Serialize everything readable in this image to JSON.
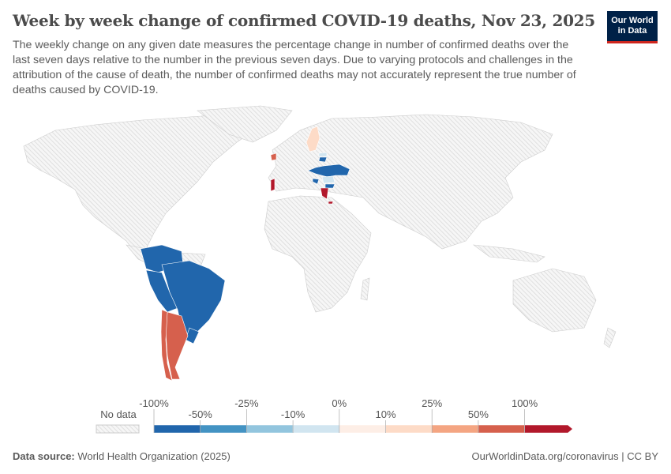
{
  "header": {
    "title": "Week by week change of confirmed COVID-19 deaths, Nov 23, 2025",
    "subtitle": "The weekly change on any given date measures the percentage change in number of confirmed deaths over the last seven days relative to the number in the previous seven days. Due to varying protocols and challenges in the attribution of the cause of death, the number of confirmed deaths may not accurately represent the true number of deaths caused by COVID-19.",
    "logo": "Our World in Data"
  },
  "legend": {
    "no_data_label": "No data",
    "upper_ticks": [
      "-100%",
      "-25%",
      "0%",
      "25%",
      "100%"
    ],
    "lower_ticks": [
      "-50%",
      "-10%",
      "10%",
      "50%"
    ],
    "bins": [
      {
        "range": "-100% to -50%",
        "color": "#2166ac"
      },
      {
        "range": "-50% to -25%",
        "color": "#4393c3"
      },
      {
        "range": "-25% to -10%",
        "color": "#92c5de"
      },
      {
        "range": "-10% to 0%",
        "color": "#d1e5f0"
      },
      {
        "range": "0% to 10%",
        "color": "#fdeee6"
      },
      {
        "range": "10% to 25%",
        "color": "#fddbc7"
      },
      {
        "range": "25% to 50%",
        "color": "#f4a582"
      },
      {
        "range": "50% to 100%",
        "color": "#d6604d"
      },
      {
        "range": ">100%",
        "color": "#b2182b"
      }
    ]
  },
  "map_data": {
    "Sweden": "10% to 25%",
    "Ireland": "50% to 100%",
    "Portugal": ">100%",
    "Greece": ">100%",
    "Cyprus": ">100%",
    "Latvia": "-10% to 0%",
    "Lithuania": "-100% to -50%",
    "Czechia": "-100% to -50%",
    "Ukraine": "-100% to -50%",
    "Moldova": "-100% to -50%",
    "Romania": "-10% to 0%",
    "Croatia": "-100% to -50%",
    "Bulgaria": "-100% to -50%",
    "Brazil": "-100% to -50%",
    "Colombia": "-100% to -50%",
    "Venezuela": "-100% to -50%",
    "Peru": "-100% to -50%",
    "Bolivia": "-100% to -50%",
    "Paraguay": "-100% to -50%",
    "Uruguay": "-100% to -50%",
    "Argentina": "50% to 100%",
    "Chile": "50% to 100%"
  },
  "footer": {
    "source_label": "Data source:",
    "source": "World Health Organization (2025)",
    "link": "OurWorldinData.org/coronavirus | CC BY"
  }
}
